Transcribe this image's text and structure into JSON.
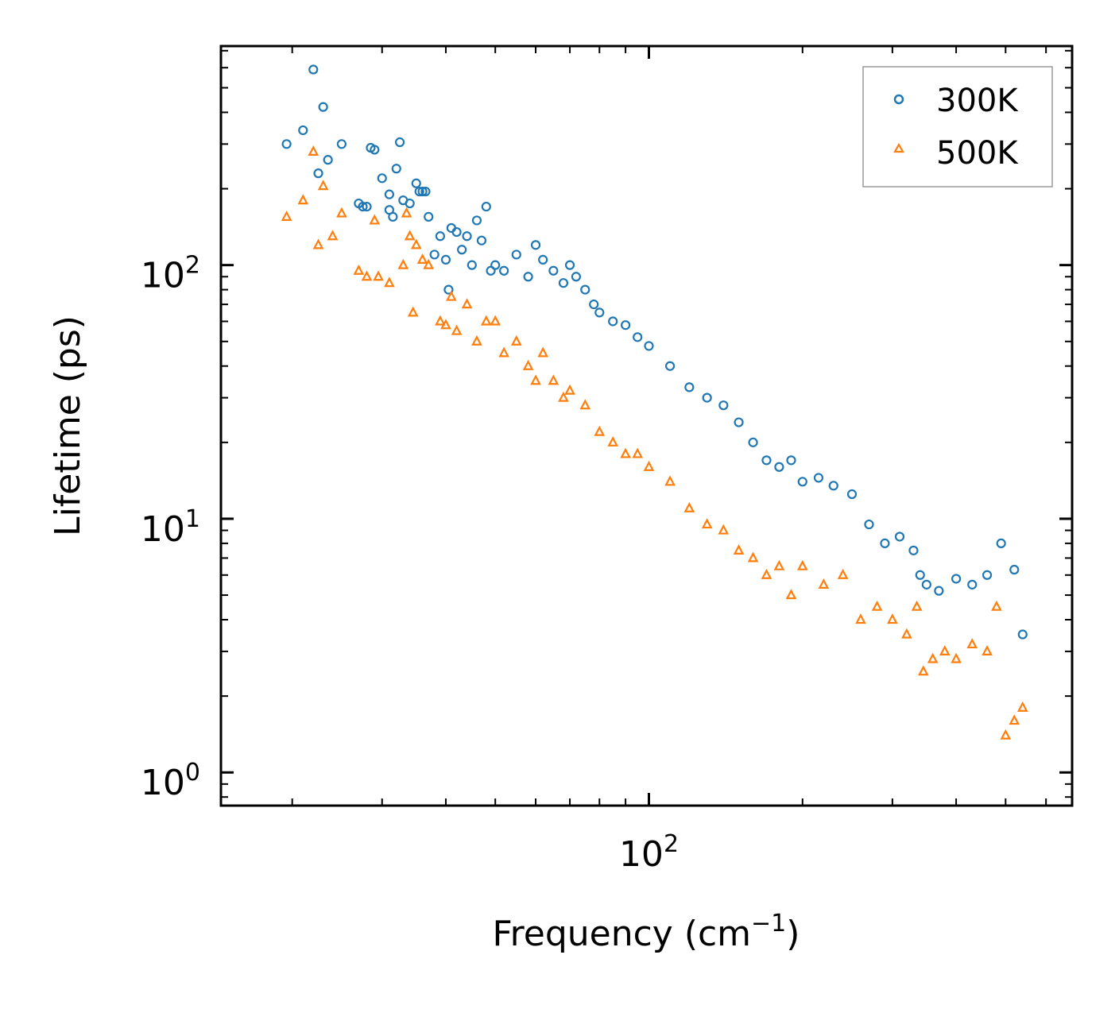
{
  "chart_data": {
    "type": "scatter",
    "title": "",
    "xlabel": "Frequency (cm",
    "xlabel_sup": "−1",
    "xlabel_tail": ")",
    "ylabel": "Lifetime (ps)",
    "xscale": "log",
    "yscale": "log",
    "xlim": [
      14.5,
      675
    ],
    "ylim": [
      0.74,
      730
    ],
    "x_major_ticks": [
      {
        "value": 100,
        "base": "10",
        "exp": "2"
      }
    ],
    "y_major_ticks": [
      {
        "value": 1,
        "base": "10",
        "exp": "0"
      },
      {
        "value": 10,
        "base": "10",
        "exp": "1"
      },
      {
        "value": 100,
        "base": "10",
        "exp": "2"
      }
    ],
    "legend_position": "top-right",
    "series": [
      {
        "name": "300K",
        "marker": "circle",
        "color": "#1f77b4",
        "points": [
          [
            19.5,
            300
          ],
          [
            21,
            340
          ],
          [
            22,
            590
          ],
          [
            22.5,
            230
          ],
          [
            23,
            420
          ],
          [
            23.5,
            260
          ],
          [
            25,
            300
          ],
          [
            27,
            175
          ],
          [
            27.5,
            170
          ],
          [
            28,
            170
          ],
          [
            28.5,
            290
          ],
          [
            29,
            285
          ],
          [
            30,
            220
          ],
          [
            31,
            190
          ],
          [
            31,
            165
          ],
          [
            31.5,
            155
          ],
          [
            32,
            240
          ],
          [
            32.5,
            305
          ],
          [
            33,
            180
          ],
          [
            34,
            175
          ],
          [
            35,
            210
          ],
          [
            35.5,
            195
          ],
          [
            36,
            195
          ],
          [
            36.5,
            195
          ],
          [
            37,
            155
          ],
          [
            38,
            110
          ],
          [
            39,
            130
          ],
          [
            40,
            105
          ],
          [
            40.5,
            80
          ],
          [
            41,
            140
          ],
          [
            42,
            135
          ],
          [
            43,
            115
          ],
          [
            44,
            130
          ],
          [
            45,
            100
          ],
          [
            46,
            150
          ],
          [
            47,
            125
          ],
          [
            48,
            170
          ],
          [
            49,
            95
          ],
          [
            50,
            100
          ],
          [
            52,
            95
          ],
          [
            55,
            110
          ],
          [
            58,
            90
          ],
          [
            60,
            120
          ],
          [
            62,
            105
          ],
          [
            65,
            95
          ],
          [
            68,
            85
          ],
          [
            70,
            100
          ],
          [
            72,
            90
          ],
          [
            75,
            80
          ],
          [
            78,
            70
          ],
          [
            80,
            65
          ],
          [
            85,
            60
          ],
          [
            90,
            58
          ],
          [
            95,
            52
          ],
          [
            100,
            48
          ],
          [
            110,
            40
          ],
          [
            120,
            33
          ],
          [
            130,
            30
          ],
          [
            140,
            28
          ],
          [
            150,
            24
          ],
          [
            160,
            20
          ],
          [
            170,
            17
          ],
          [
            180,
            16
          ],
          [
            190,
            17
          ],
          [
            200,
            14
          ],
          [
            215,
            14.5
          ],
          [
            230,
            13.5
          ],
          [
            250,
            12.5
          ],
          [
            270,
            9.5
          ],
          [
            290,
            8
          ],
          [
            310,
            8.5
          ],
          [
            330,
            7.5
          ],
          [
            340,
            6
          ],
          [
            350,
            5.5
          ],
          [
            370,
            5.2
          ],
          [
            400,
            5.8
          ],
          [
            430,
            5.5
          ],
          [
            460,
            6
          ],
          [
            490,
            8
          ],
          [
            520,
            6.3
          ],
          [
            540,
            3.5
          ]
        ]
      },
      {
        "name": "500K",
        "marker": "triangle",
        "color": "#ff7f0e",
        "points": [
          [
            19.5,
            155
          ],
          [
            21,
            180
          ],
          [
            22,
            280
          ],
          [
            22.5,
            120
          ],
          [
            23,
            205
          ],
          [
            24,
            130
          ],
          [
            25,
            160
          ],
          [
            27,
            95
          ],
          [
            28,
            90
          ],
          [
            29,
            150
          ],
          [
            29.5,
            90
          ],
          [
            31,
            85
          ],
          [
            33,
            100
          ],
          [
            33.5,
            160
          ],
          [
            34,
            130
          ],
          [
            34.5,
            65
          ],
          [
            35,
            120
          ],
          [
            36,
            105
          ],
          [
            37,
            100
          ],
          [
            39,
            60
          ],
          [
            40,
            58
          ],
          [
            41,
            75
          ],
          [
            42,
            55
          ],
          [
            44,
            70
          ],
          [
            46,
            50
          ],
          [
            48,
            60
          ],
          [
            50,
            60
          ],
          [
            52,
            45
          ],
          [
            55,
            50
          ],
          [
            58,
            40
          ],
          [
            60,
            35
          ],
          [
            62,
            45
          ],
          [
            65,
            35
          ],
          [
            68,
            30
          ],
          [
            70,
            32
          ],
          [
            75,
            28
          ],
          [
            80,
            22
          ],
          [
            85,
            20
          ],
          [
            90,
            18
          ],
          [
            95,
            18
          ],
          [
            100,
            16
          ],
          [
            110,
            14
          ],
          [
            120,
            11
          ],
          [
            130,
            9.5
          ],
          [
            140,
            9
          ],
          [
            150,
            7.5
          ],
          [
            160,
            7
          ],
          [
            170,
            6
          ],
          [
            180,
            6.5
          ],
          [
            190,
            5
          ],
          [
            200,
            6.5
          ],
          [
            220,
            5.5
          ],
          [
            240,
            6
          ],
          [
            260,
            4
          ],
          [
            280,
            4.5
          ],
          [
            300,
            4
          ],
          [
            320,
            3.5
          ],
          [
            335,
            4.5
          ],
          [
            345,
            2.5
          ],
          [
            360,
            2.8
          ],
          [
            380,
            3
          ],
          [
            400,
            2.8
          ],
          [
            430,
            3.2
          ],
          [
            460,
            3
          ],
          [
            480,
            4.5
          ],
          [
            500,
            1.4
          ],
          [
            520,
            1.6
          ],
          [
            540,
            1.8
          ]
        ]
      }
    ]
  }
}
